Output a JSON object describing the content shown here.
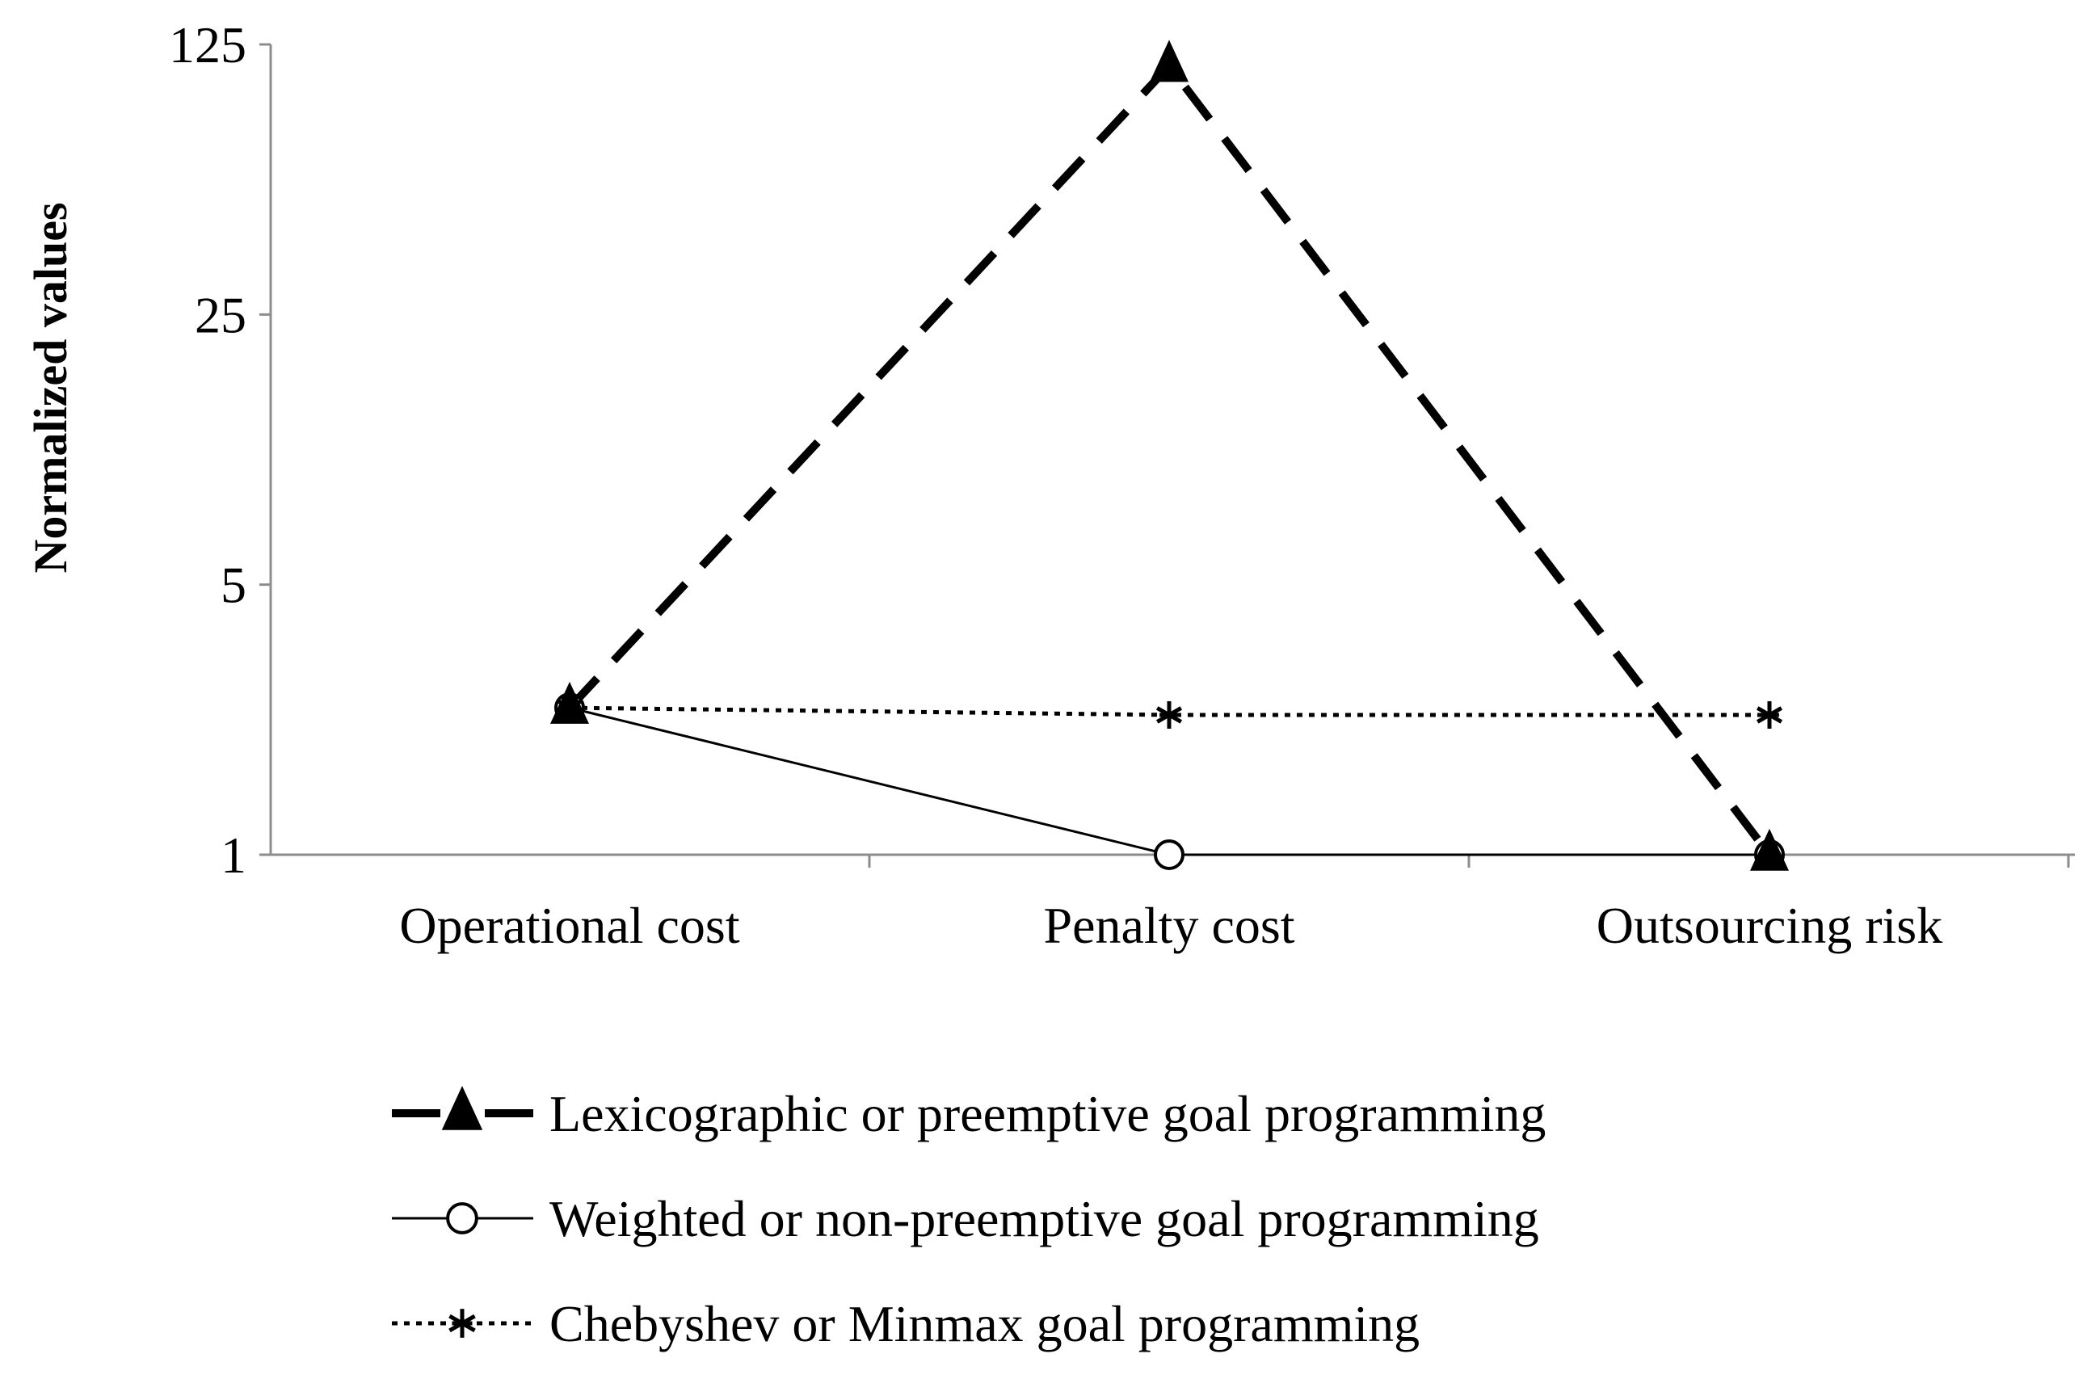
{
  "chart_data": {
    "type": "line",
    "title": "",
    "xlabel": "",
    "ylabel": "Normalized values",
    "yscale": "log5",
    "ylim": [
      1,
      125
    ],
    "yticks": [
      "1",
      "5",
      "25",
      "125"
    ],
    "categories": [
      "Operational cost",
      "Penalty cost",
      "Outsourcing risk"
    ],
    "grid": false,
    "legend_position": "bottom",
    "series": [
      {
        "name": "Lexicographic or preemptive goal programming",
        "values": [
          2.4,
          110,
          1
        ],
        "line_style": "dashed-thick",
        "marker": "filled-triangle",
        "color": "#000000"
      },
      {
        "name": "Weighted or non-preemptive goal programming",
        "values": [
          2.4,
          1,
          1
        ],
        "line_style": "solid-thin",
        "marker": "open-circle",
        "color": "#000000"
      },
      {
        "name": "Chebyshev or Minmax goal programming",
        "values": [
          2.4,
          2.3,
          2.3
        ],
        "line_style": "dotted",
        "marker": "asterisk",
        "color": "#000000"
      }
    ]
  }
}
